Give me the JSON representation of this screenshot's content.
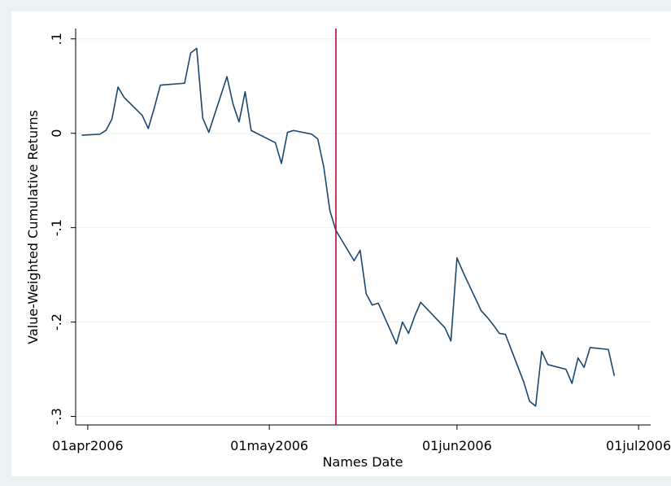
{
  "chart_data": {
    "type": "line",
    "y_label": "Value-Weighted Cumulative Returns",
    "x_label": "Names Date",
    "x": [
      "2006-03-31",
      "2006-04-03",
      "2006-04-04",
      "2006-04-05",
      "2006-04-06",
      "2006-04-07",
      "2006-04-10",
      "2006-04-11",
      "2006-04-12",
      "2006-04-13",
      "2006-04-17",
      "2006-04-18",
      "2006-04-19",
      "2006-04-20",
      "2006-04-21",
      "2006-04-24",
      "2006-04-25",
      "2006-04-26",
      "2006-04-27",
      "2006-04-28",
      "2006-05-02",
      "2006-05-03",
      "2006-05-04",
      "2006-05-05",
      "2006-05-08",
      "2006-05-09",
      "2006-05-10",
      "2006-05-11",
      "2006-05-12",
      "2006-05-15",
      "2006-05-16",
      "2006-05-17",
      "2006-05-18",
      "2006-05-19",
      "2006-05-22",
      "2006-05-23",
      "2006-05-24",
      "2006-05-25",
      "2006-05-26",
      "2006-05-30",
      "2006-05-31",
      "2006-06-01",
      "2006-06-02",
      "2006-06-05",
      "2006-06-06",
      "2006-06-07",
      "2006-06-08",
      "2006-06-09",
      "2006-06-12",
      "2006-06-13",
      "2006-06-14",
      "2006-06-15",
      "2006-06-16",
      "2006-06-19",
      "2006-06-20",
      "2006-06-21",
      "2006-06-22",
      "2006-06-23",
      "2006-06-26",
      "2006-06-27"
    ],
    "series": [
      {
        "color": "#1a476f",
        "values": [
          -0.002,
          -0.001,
          0.003,
          0.015,
          0.049,
          0.038,
          0.019,
          0.005,
          0.027,
          0.051,
          0.053,
          0.085,
          0.09,
          0.016,
          0.001,
          0.06,
          0.031,
          0.012,
          0.044,
          0.003,
          -0.01,
          -0.032,
          0.001,
          0.003,
          -0.001,
          -0.006,
          -0.036,
          -0.082,
          -0.103,
          -0.135,
          -0.124,
          -0.17,
          -0.182,
          -0.18,
          -0.223,
          -0.2,
          -0.212,
          -0.194,
          -0.179,
          -0.206,
          -0.22,
          -0.132,
          -0.147,
          -0.188,
          -0.195,
          -0.203,
          -0.212,
          -0.213,
          -0.263,
          -0.284,
          -0.289,
          -0.231,
          -0.245,
          -0.25,
          -0.265,
          -0.238,
          -0.248,
          -0.227,
          -0.229,
          -0.257
        ]
      }
    ],
    "vline": {
      "x": "2006-05-12",
      "color": "#c10534"
    },
    "xlim": [
      "2006-03-30",
      "2006-07-03"
    ],
    "xticks": [
      {
        "value": "2006-04-01",
        "label": "01apr2006"
      },
      {
        "value": "2006-05-01",
        "label": "01may2006"
      },
      {
        "value": "2006-06-01",
        "label": "01jun2006"
      },
      {
        "value": "2006-07-01",
        "label": "01jul2006"
      }
    ],
    "ylim": [
      -0.309,
      0.111
    ],
    "yticks": [
      {
        "value": 0.1,
        "label": ".1"
      },
      0,
      {
        "value": -0.1,
        "label": "-.1"
      },
      {
        "value": -0.2,
        "label": "-.2"
      },
      {
        "value": -0.3,
        "label": "-.3"
      }
    ],
    "grid": true
  }
}
